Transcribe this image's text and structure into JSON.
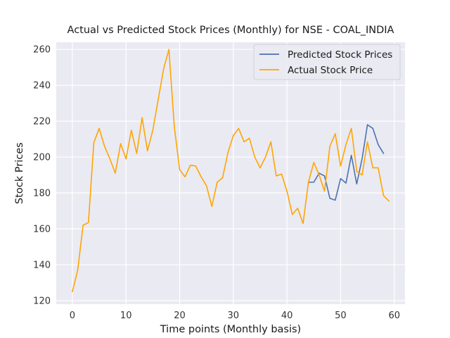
{
  "colors": {
    "plot_background": "#eaeaf2",
    "grid": "#ffffff",
    "predicted": "#4c72b0",
    "actual": "#ffa500"
  },
  "chart_data": {
    "type": "line",
    "title": "Actual vs Predicted Stock Prices (Monthly) for NSE - COAL_INDIA",
    "xlabel": "Time points (Monthly basis)",
    "ylabel": "Stock Prices",
    "xlim": [
      -3.0,
      62.0
    ],
    "ylim": [
      118,
      264
    ],
    "xticks": [
      0,
      10,
      20,
      30,
      40,
      50,
      60
    ],
    "yticks": [
      120,
      140,
      160,
      180,
      200,
      220,
      240,
      260
    ],
    "grid": true,
    "legend_position": "top-right",
    "series": [
      {
        "name": "Predicted Stock Prices",
        "color": "#4c72b0",
        "x": [
          44,
          45,
          46,
          47,
          48,
          49,
          50,
          51,
          52,
          53,
          54,
          55,
          56,
          57,
          58
        ],
        "y": [
          186,
          186,
          191,
          189.5,
          177,
          176,
          188,
          185.5,
          201,
          185,
          199,
          218,
          216,
          207,
          202
        ]
      },
      {
        "name": "Actual Stock Price",
        "color": "#ffa500",
        "x": [
          0,
          1,
          2,
          3,
          4,
          5,
          6,
          7,
          8,
          9,
          10,
          11,
          12,
          13,
          14,
          15,
          16,
          17,
          18,
          19,
          20,
          21,
          22,
          23,
          24,
          25,
          26,
          27,
          28,
          29,
          30,
          31,
          32,
          33,
          34,
          35,
          36,
          37,
          38,
          39,
          40,
          41,
          42,
          43,
          44,
          45,
          46,
          47,
          48,
          49,
          50,
          51,
          52,
          53,
          54,
          55,
          56,
          57,
          58,
          59
        ],
        "y": [
          125,
          137,
          162,
          163.5,
          208,
          216,
          206,
          199,
          191,
          207.5,
          199,
          215,
          202,
          222,
          203.5,
          215,
          232,
          249,
          260,
          217,
          193,
          189,
          195.5,
          195,
          189,
          184,
          172.5,
          186,
          188.5,
          202.5,
          212,
          216,
          208.5,
          210.5,
          200,
          194,
          200,
          208.5,
          189.5,
          190.5,
          181,
          168,
          171.5,
          163,
          186,
          197,
          190,
          181,
          206,
          213,
          195,
          207,
          216,
          192,
          190,
          208.5,
          194,
          194,
          178.5,
          175.5
        ]
      }
    ]
  }
}
